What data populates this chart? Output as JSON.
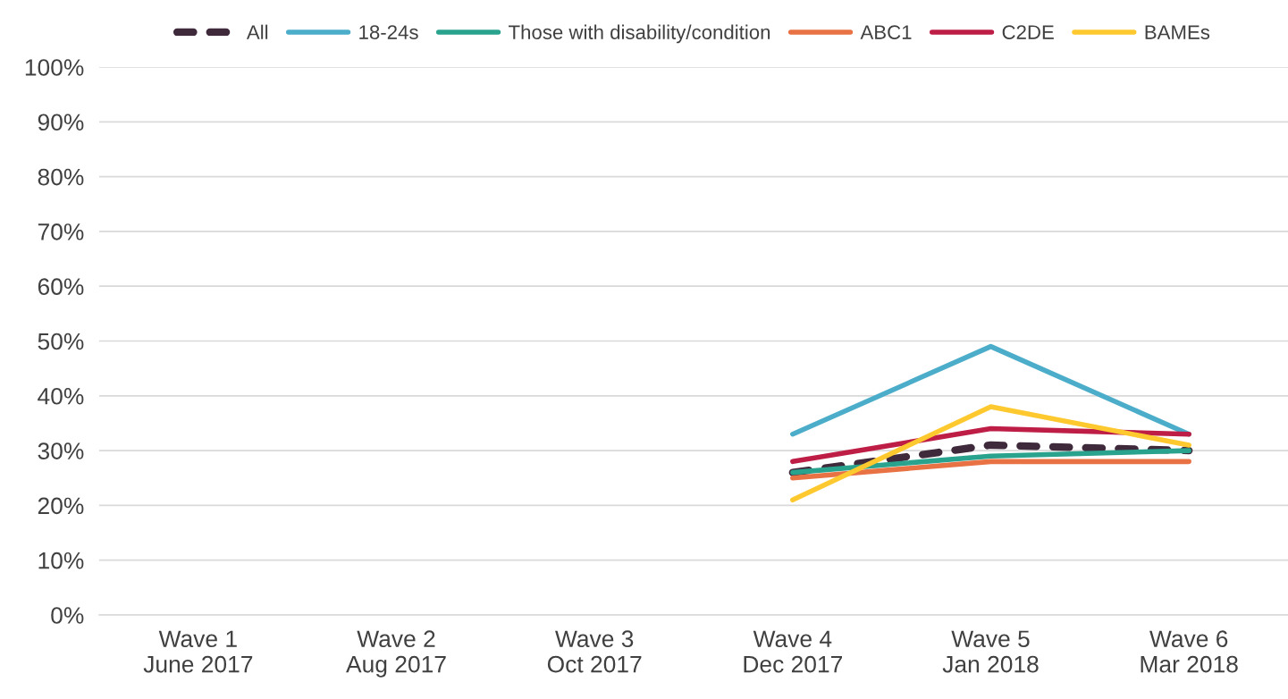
{
  "chart_data": {
    "type": "line",
    "categories": [
      "Wave 1\nJune 2017",
      "Wave 2\nAug 2017",
      "Wave 3\nOct 2017",
      "Wave 4\nDec 2017",
      "Wave 5\nJan 2018",
      "Wave 6\nMar 2018"
    ],
    "ylim": [
      0,
      1
    ],
    "yticks": [
      {
        "value": 0,
        "label": "0%"
      },
      {
        "value": 0.1,
        "label": "10%"
      },
      {
        "value": 0.2,
        "label": "20%"
      },
      {
        "value": 0.3,
        "label": "30%"
      },
      {
        "value": 0.4,
        "label": "40%"
      },
      {
        "value": 0.5,
        "label": "50%"
      },
      {
        "value": 0.6,
        "label": "60%"
      },
      {
        "value": 0.7,
        "label": "70%"
      },
      {
        "value": 0.8,
        "label": "80%"
      },
      {
        "value": 0.9,
        "label": "90%"
      },
      {
        "value": 1,
        "label": "100%"
      }
    ],
    "grid": "y",
    "legend": "top",
    "marker": "none",
    "series": [
      {
        "name": "All",
        "color": "#3f2a3c",
        "line_style": "dashed",
        "values": [
          null,
          null,
          null,
          0.26,
          0.31,
          0.3
        ]
      },
      {
        "name": "18-24s",
        "color": "#4badc9",
        "values": [
          null,
          null,
          null,
          0.33,
          0.49,
          0.33
        ]
      },
      {
        "name": "Those with disability/condition",
        "color": "#2aa38e",
        "values": [
          null,
          null,
          null,
          0.26,
          0.29,
          0.3
        ]
      },
      {
        "name": "ABC1",
        "color": "#e97245",
        "values": [
          null,
          null,
          null,
          0.25,
          0.28,
          0.28
        ]
      },
      {
        "name": "C2DE",
        "color": "#be1e45",
        "values": [
          null,
          null,
          null,
          0.28,
          0.34,
          0.33
        ]
      },
      {
        "name": "BAMEs",
        "color": "#fec92f",
        "values": [
          null,
          null,
          null,
          0.21,
          0.38,
          0.31
        ]
      }
    ]
  }
}
